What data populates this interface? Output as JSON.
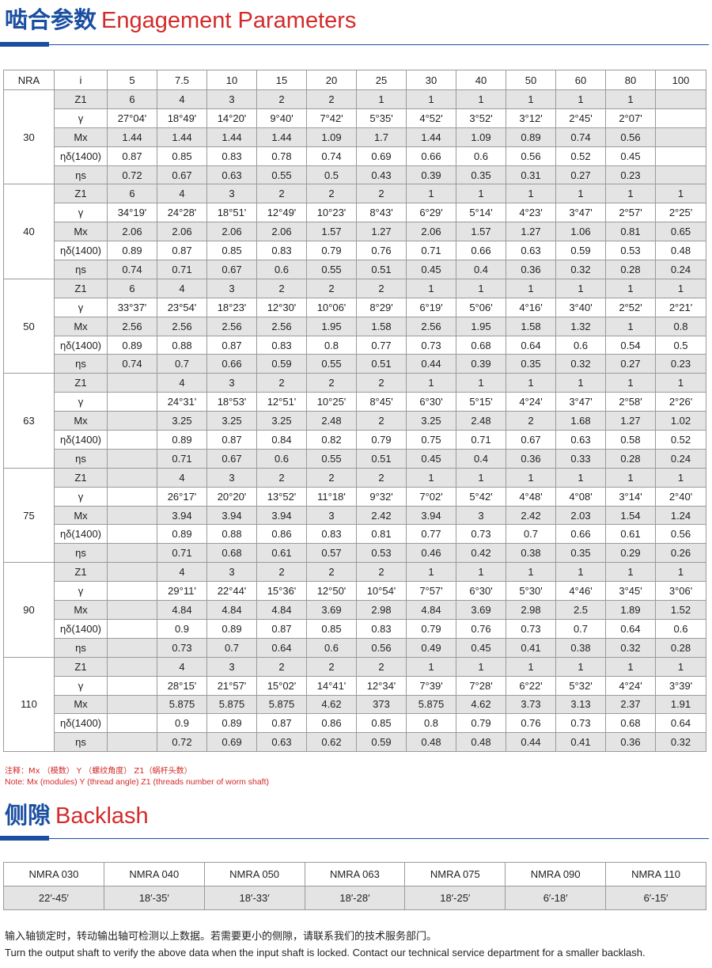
{
  "engagement": {
    "title_cn": "啮合参数",
    "title_en": "Engagement Parameters",
    "header": [
      "NRA",
      "i",
      "5",
      "7.5",
      "10",
      "15",
      "20",
      "25",
      "30",
      "40",
      "50",
      "60",
      "80",
      "100"
    ],
    "groups": [
      {
        "nra": "30",
        "rows": [
          {
            "label": "Z1",
            "values": [
              "6",
              "4",
              "3",
              "2",
              "2",
              "1",
              "1",
              "1",
              "1",
              "1",
              "1",
              ""
            ]
          },
          {
            "label": "γ",
            "values": [
              "27°04'",
              "18°49'",
              "14°20'",
              "9°40'",
              "7°42'",
              "5°35'",
              "4°52'",
              "3°52'",
              "3°12'",
              "2°45'",
              "2°07'",
              ""
            ]
          },
          {
            "label": "Mx",
            "values": [
              "1.44",
              "1.44",
              "1.44",
              "1.44",
              "1.09",
              "1.7",
              "1.44",
              "1.09",
              "0.89",
              "0.74",
              "0.56",
              ""
            ]
          },
          {
            "label": "ηδ(1400)",
            "values": [
              "0.87",
              "0.85",
              "0.83",
              "0.78",
              "0.74",
              "0.69",
              "0.66",
              "0.6",
              "0.56",
              "0.52",
              "0.45",
              ""
            ]
          },
          {
            "label": "ηs",
            "values": [
              "0.72",
              "0.67",
              "0.63",
              "0.55",
              "0.5",
              "0.43",
              "0.39",
              "0.35",
              "0.31",
              "0.27",
              "0.23",
              ""
            ]
          }
        ]
      },
      {
        "nra": "40",
        "rows": [
          {
            "label": "Z1",
            "values": [
              "6",
              "4",
              "3",
              "2",
              "2",
              "2",
              "1",
              "1",
              "1",
              "1",
              "1",
              "1"
            ]
          },
          {
            "label": "γ",
            "values": [
              "34°19'",
              "24°28'",
              "18°51'",
              "12°49'",
              "10°23'",
              "8°43'",
              "6°29'",
              "5°14'",
              "4°23'",
              "3°47'",
              "2°57'",
              "2°25'"
            ]
          },
          {
            "label": "Mx",
            "values": [
              "2.06",
              "2.06",
              "2.06",
              "2.06",
              "1.57",
              "1.27",
              "2.06",
              "1.57",
              "1.27",
              "1.06",
              "0.81",
              "0.65"
            ]
          },
          {
            "label": "ηδ(1400)",
            "values": [
              "0.89",
              "0.87",
              "0.85",
              "0.83",
              "0.79",
              "0.76",
              "0.71",
              "0.66",
              "0.63",
              "0.59",
              "0.53",
              "0.48"
            ]
          },
          {
            "label": "ηs",
            "values": [
              "0.74",
              "0.71",
              "0.67",
              "0.6",
              "0.55",
              "0.51",
              "0.45",
              "0.4",
              "0.36",
              "0.32",
              "0.28",
              "0.24"
            ]
          }
        ]
      },
      {
        "nra": "50",
        "rows": [
          {
            "label": "Z1",
            "values": [
              "6",
              "4",
              "3",
              "2",
              "2",
              "2",
              "1",
              "1",
              "1",
              "1",
              "1",
              "1"
            ]
          },
          {
            "label": "γ",
            "values": [
              "33°37'",
              "23°54'",
              "18°23'",
              "12°30'",
              "10°06'",
              "8°29'",
              "6°19'",
              "5°06'",
              "4°16'",
              "3°40'",
              "2°52'",
              "2°21'"
            ]
          },
          {
            "label": "Mx",
            "values": [
              "2.56",
              "2.56",
              "2.56",
              "2.56",
              "1.95",
              "1.58",
              "2.56",
              "1.95",
              "1.58",
              "1.32",
              "1",
              "0.8"
            ]
          },
          {
            "label": "ηδ(1400)",
            "values": [
              "0.89",
              "0.88",
              "0.87",
              "0.83",
              "0.8",
              "0.77",
              "0.73",
              "0.68",
              "0.64",
              "0.6",
              "0.54",
              "0.5"
            ]
          },
          {
            "label": "ηs",
            "values": [
              "0.74",
              "0.7",
              "0.66",
              "0.59",
              "0.55",
              "0.51",
              "0.44",
              "0.39",
              "0.35",
              "0.32",
              "0.27",
              "0.23"
            ]
          }
        ]
      },
      {
        "nra": "63",
        "rows": [
          {
            "label": "Z1",
            "values": [
              "",
              "4",
              "3",
              "2",
              "2",
              "2",
              "1",
              "1",
              "1",
              "1",
              "1",
              "1"
            ]
          },
          {
            "label": "γ",
            "values": [
              "",
              "24°31'",
              "18°53'",
              "12°51'",
              "10°25'",
              "8°45'",
              "6°30'",
              "5°15'",
              "4°24'",
              "3°47'",
              "2°58'",
              "2°26'"
            ]
          },
          {
            "label": "Mx",
            "values": [
              "",
              "3.25",
              "3.25",
              "3.25",
              "2.48",
              "2",
              "3.25",
              "2.48",
              "2",
              "1.68",
              "1.27",
              "1.02"
            ]
          },
          {
            "label": "ηδ(1400)",
            "values": [
              "",
              "0.89",
              "0.87",
              "0.84",
              "0.82",
              "0.79",
              "0.75",
              "0.71",
              "0.67",
              "0.63",
              "0.58",
              "0.52"
            ]
          },
          {
            "label": "ηs",
            "values": [
              "",
              "0.71",
              "0.67",
              "0.6",
              "0.55",
              "0.51",
              "0.45",
              "0.4",
              "0.36",
              "0.33",
              "0.28",
              "0.24"
            ]
          }
        ]
      },
      {
        "nra": "75",
        "rows": [
          {
            "label": "Z1",
            "values": [
              "",
              "4",
              "3",
              "2",
              "2",
              "2",
              "1",
              "1",
              "1",
              "1",
              "1",
              "1"
            ]
          },
          {
            "label": "γ",
            "values": [
              "",
              "26°17'",
              "20°20'",
              "13°52'",
              "11°18'",
              "9°32'",
              "7°02'",
              "5°42'",
              "4°48'",
              "4°08'",
              "3°14'",
              "2°40'"
            ]
          },
          {
            "label": "Mx",
            "values": [
              "",
              "3.94",
              "3.94",
              "3.94",
              "3",
              "2.42",
              "3.94",
              "3",
              "2.42",
              "2.03",
              "1.54",
              "1.24"
            ]
          },
          {
            "label": "ηδ(1400)",
            "values": [
              "",
              "0.89",
              "0.88",
              "0.86",
              "0.83",
              "0.81",
              "0.77",
              "0.73",
              "0.7",
              "0.66",
              "0.61",
              "0.56"
            ]
          },
          {
            "label": "ηs",
            "values": [
              "",
              "0.71",
              "0.68",
              "0.61",
              "0.57",
              "0.53",
              "0.46",
              "0.42",
              "0.38",
              "0.35",
              "0.29",
              "0.26"
            ]
          }
        ]
      },
      {
        "nra": "90",
        "rows": [
          {
            "label": "Z1",
            "values": [
              "",
              "4",
              "3",
              "2",
              "2",
              "2",
              "1",
              "1",
              "1",
              "1",
              "1",
              "1"
            ]
          },
          {
            "label": "γ",
            "values": [
              "",
              "29°11'",
              "22°44'",
              "15°36'",
              "12°50'",
              "10°54'",
              "7°57'",
              "6°30'",
              "5°30'",
              "4°46'",
              "3°45'",
              "3°06'"
            ]
          },
          {
            "label": "Mx",
            "values": [
              "",
              "4.84",
              "4.84",
              "4.84",
              "3.69",
              "2.98",
              "4.84",
              "3.69",
              "2.98",
              "2.5",
              "1.89",
              "1.52"
            ]
          },
          {
            "label": "ηδ(1400)",
            "values": [
              "",
              "0.9",
              "0.89",
              "0.87",
              "0.85",
              "0.83",
              "0.79",
              "0.76",
              "0.73",
              "0.7",
              "0.64",
              "0.6"
            ]
          },
          {
            "label": "ηs",
            "values": [
              "",
              "0.73",
              "0.7",
              "0.64",
              "0.6",
              "0.56",
              "0.49",
              "0.45",
              "0.41",
              "0.38",
              "0.32",
              "0.28"
            ]
          }
        ]
      },
      {
        "nra": "110",
        "rows": [
          {
            "label": "Z1",
            "values": [
              "",
              "4",
              "3",
              "2",
              "2",
              "2",
              "1",
              "1",
              "1",
              "1",
              "1",
              "1"
            ]
          },
          {
            "label": "γ",
            "values": [
              "",
              "28°15'",
              "21°57'",
              "15°02'",
              "14°41'",
              "12°34'",
              "7°39'",
              "7°28'",
              "6°22'",
              "5°32'",
              "4°24'",
              "3°39'"
            ]
          },
          {
            "label": "Mx",
            "values": [
              "",
              "5.875",
              "5.875",
              "5.875",
              "4.62",
              "373",
              "5.875",
              "4.62",
              "3.73",
              "3.13",
              "2.37",
              "1.91"
            ]
          },
          {
            "label": "ηδ(1400)",
            "values": [
              "",
              "0.9",
              "0.89",
              "0.87",
              "0.86",
              "0.85",
              "0.8",
              "0.79",
              "0.76",
              "0.73",
              "0.68",
              "0.64"
            ]
          },
          {
            "label": "ηs",
            "values": [
              "",
              "0.72",
              "0.69",
              "0.63",
              "0.62",
              "0.59",
              "0.48",
              "0.48",
              "0.44",
              "0.41",
              "0.36",
              "0.32"
            ]
          }
        ]
      }
    ],
    "note_cn": "注释：Mx （模数）  Y  （螺纹角度）  Z1（蜗杆头数）",
    "note_en": "Note: Mx   (modules) Y  (thread angle)  Z1 (threads number of worm shaft)"
  },
  "backlash": {
    "title_cn": "侧隙",
    "title_en": "Backlash",
    "models": [
      "NMRA 030",
      "NMRA 040",
      "NMRA 050",
      "NMRA 063",
      "NMRA 075",
      "NMRA 090",
      "NMRA 110"
    ],
    "values": [
      "22′-45′",
      "18′-35′",
      "18′-33′",
      "18′-28′",
      "18′-25′",
      "6′-18′",
      "6′-15′"
    ]
  },
  "footer": {
    "cn": "输入轴锁定时，转动输出轴可检测以上数据。若需要更小的侧隙，请联系我们的技术服务部门。",
    "en": "Turn the output shaft to verify the above data when the input shaft is locked. Contact our technical service department for a smaller backlash."
  }
}
